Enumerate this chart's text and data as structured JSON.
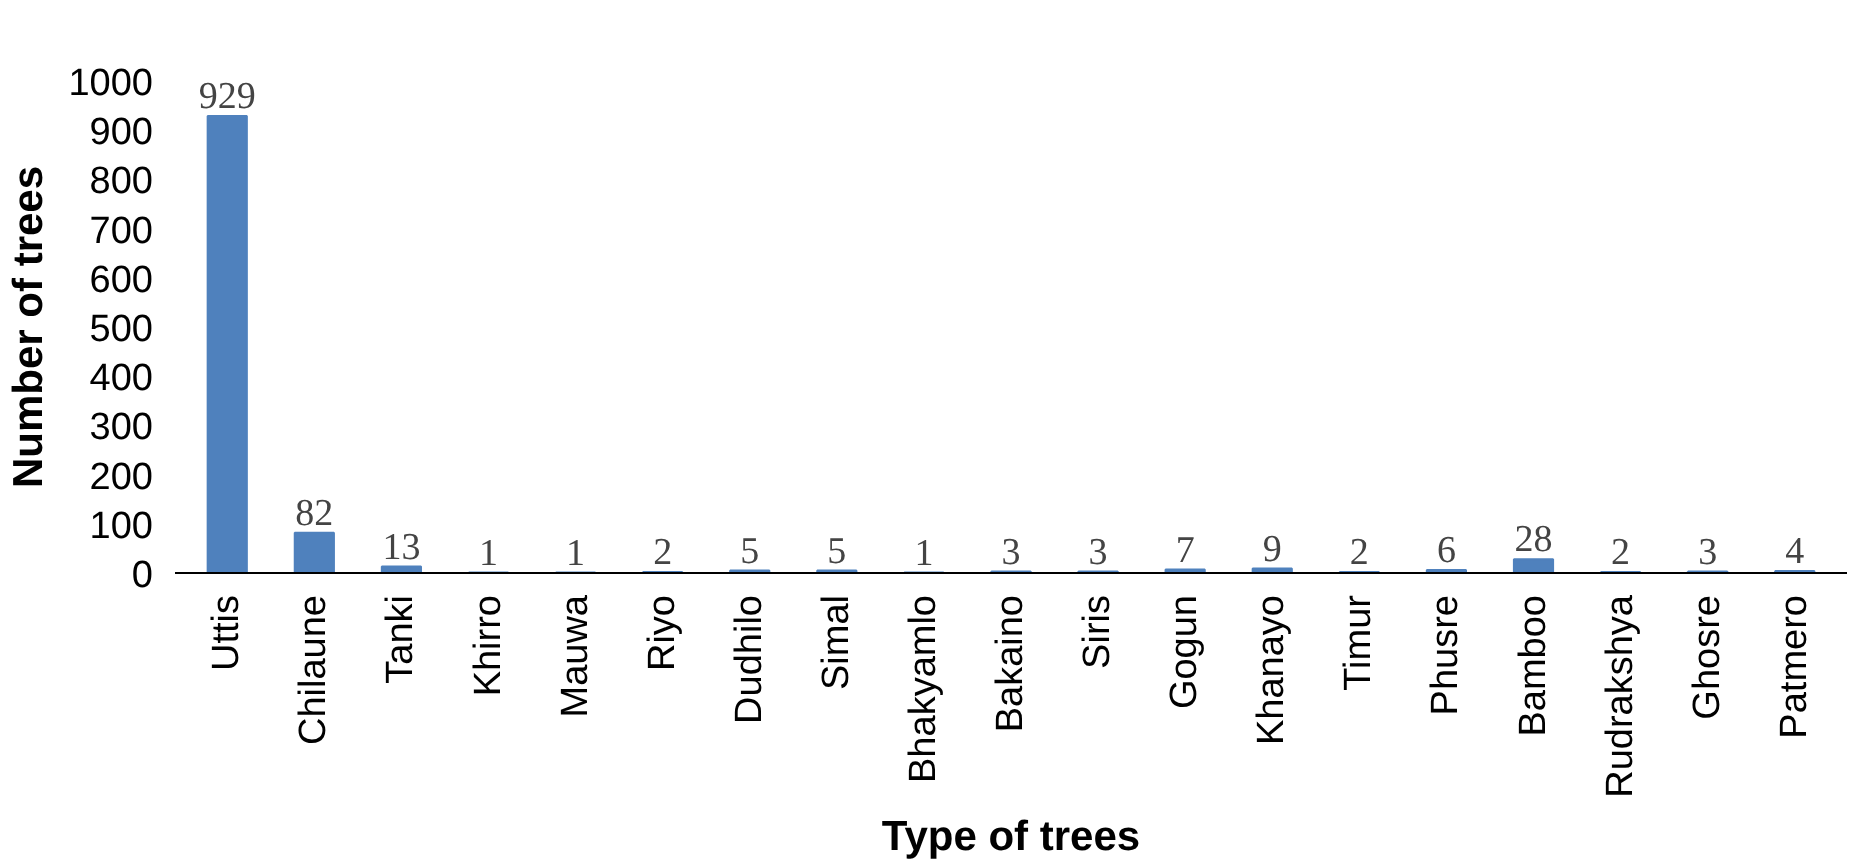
{
  "chart_data": {
    "type": "bar",
    "xlabel": "Type of trees",
    "ylabel": "Number of trees",
    "categories": [
      "Uttis",
      "Chilaune",
      "Tanki",
      "Khirro",
      "Mauwa",
      "Riyo",
      "Dudhilo",
      "Simal",
      "Bhakyamlo",
      "Bakaino",
      "Siris",
      "Gogun",
      "Khanayo",
      "Timur",
      "Phusre",
      "Bamboo",
      "Rudrakshya",
      "Ghosre",
      "Patmero"
    ],
    "values": [
      929,
      82,
      13,
      1,
      1,
      2,
      5,
      5,
      1,
      3,
      3,
      7,
      9,
      2,
      6,
      28,
      2,
      3,
      4
    ],
    "color": "#4f81bd",
    "ylim": [
      0,
      1000
    ],
    "yticks": [
      0,
      100,
      200,
      300,
      400,
      500,
      600,
      700,
      800,
      900,
      1000
    ],
    "data_labels": true,
    "grid": false
  }
}
